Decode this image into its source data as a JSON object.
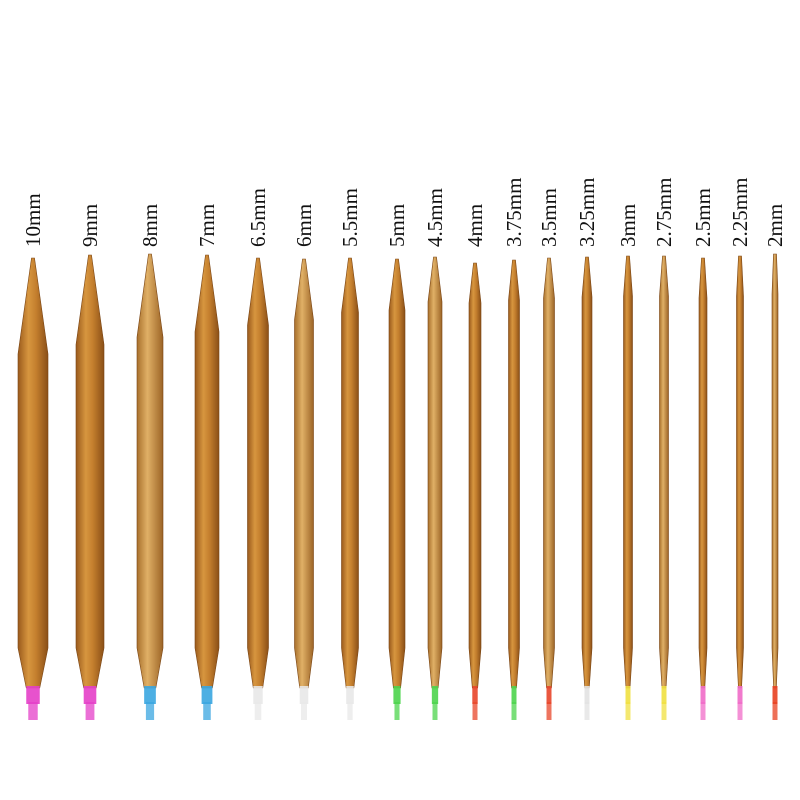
{
  "labels": [
    "10mm",
    "9mm",
    "8mm",
    "7mm",
    "6.5mm",
    "6mm",
    "5.5mm",
    "5mm",
    "4.5mm",
    "4mm",
    "3.75mm",
    "3.5mm",
    "3.25mm",
    "3mm",
    "2.75mm",
    "2.5mm",
    "2.25mm",
    "2mm"
  ]
}
